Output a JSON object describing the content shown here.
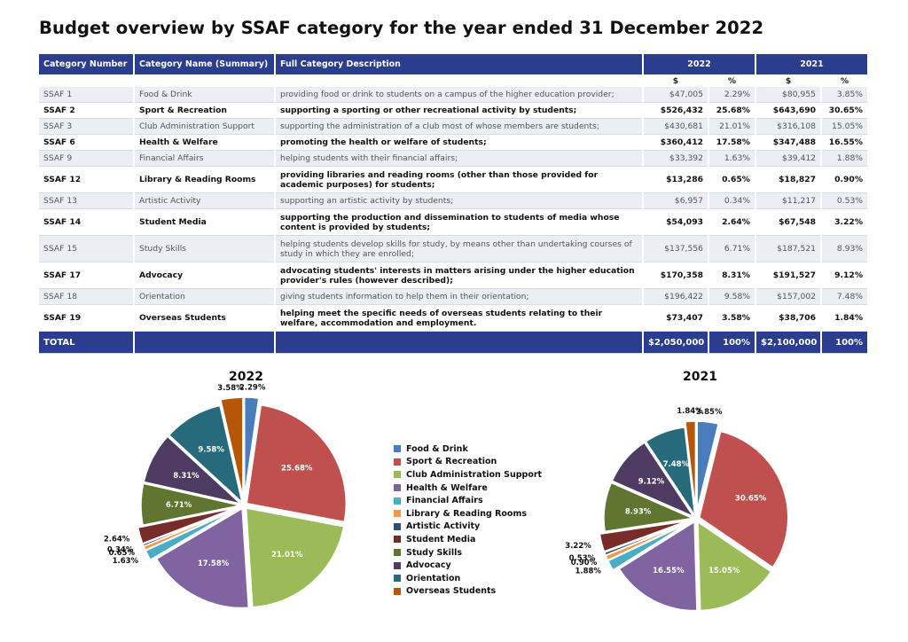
{
  "title": "Budget overview by SSAF category for the year ended 31 December 2022",
  "table": {
    "headers": {
      "number": "Category Number",
      "name": "Category Name (Summary)",
      "desc": "Full Category Description",
      "y2022": "2022",
      "y2021": "2021"
    },
    "units": {
      "dollar": "$",
      "pct": "%"
    },
    "rows": [
      {
        "num": "SSAF 1",
        "name": "Food & Drink",
        "desc": "providing food or drink to students on a campus of the higher education provider;",
        "v2022": "$47,005",
        "p2022": "2.29%",
        "v2021": "$80,955",
        "p2021": "3.85%"
      },
      {
        "num": "SSAF 2",
        "name": "Sport & Recreation",
        "desc": "supporting a sporting or other recreational activity by students;",
        "v2022": "$526,432",
        "p2022": "25.68%",
        "v2021": "$643,690",
        "p2021": "30.65%"
      },
      {
        "num": "SSAF 3",
        "name": "Club Administration Support",
        "desc": "supporting the administration of a club most of whose members are students;",
        "v2022": "$430,681",
        "p2022": "21.01%",
        "v2021": "$316,108",
        "p2021": "15.05%"
      },
      {
        "num": "SSAF 6",
        "name": "Health & Welfare",
        "desc": "promoting the health or welfare of students;",
        "v2022": "$360,412",
        "p2022": "17.58%",
        "v2021": "$347,488",
        "p2021": "16.55%"
      },
      {
        "num": "SSAF 9",
        "name": "Financial Affairs",
        "desc": "helping students with their financial affairs;",
        "v2022": "$33,392",
        "p2022": "1.63%",
        "v2021": "$39,412",
        "p2021": "1.88%"
      },
      {
        "num": "SSAF 12",
        "name": "Library & Reading Rooms",
        "desc": "providing libraries and reading rooms (other than those provided for academic purposes) for students;",
        "v2022": "$13,286",
        "p2022": "0.65%",
        "v2021": "$18,827",
        "p2021": "0.90%"
      },
      {
        "num": "SSAF 13",
        "name": "Artistic Activity",
        "desc": "supporting an artistic activity by students;",
        "v2022": "$6,957",
        "p2022": "0.34%",
        "v2021": "$11,217",
        "p2021": "0.53%"
      },
      {
        "num": "SSAF 14",
        "name": "Student Media",
        "desc": "supporting the production and dissemination to students of media whose content is provided by students;",
        "v2022": "$54,093",
        "p2022": "2.64%",
        "v2021": "$67,548",
        "p2021": "3.22%"
      },
      {
        "num": "SSAF 15",
        "name": "Study Skills",
        "desc": "helping students develop skills for study, by means other than undertaking courses of study in which they are enrolled;",
        "v2022": "$137,556",
        "p2022": "6.71%",
        "v2021": "$187,521",
        "p2021": "8.93%"
      },
      {
        "num": "SSAF 17",
        "name": "Advocacy",
        "desc": "advocating students' interests in matters arising under the higher education provider's rules (however described);",
        "v2022": "$170,358",
        "p2022": "8.31%",
        "v2021": "$191,527",
        "p2021": "9.12%"
      },
      {
        "num": "SSAF 18",
        "name": "Orientation",
        "desc": "giving students information to help them in their orientation;",
        "v2022": "$196,422",
        "p2022": "9.58%",
        "v2021": "$157,002",
        "p2021": "7.48%"
      },
      {
        "num": "SSAF 19",
        "name": "Overseas Students",
        "desc": "helping meet the specific needs of overseas students relating to their welfare, accommodation and employment.",
        "v2022": "$73,407",
        "p2022": "3.58%",
        "v2021": "$38,706",
        "p2021": "1.84%"
      }
    ],
    "total": {
      "label": "TOTAL",
      "v2022": "$2,050,000",
      "p2022": "100%",
      "v2021": "$2,100,000",
      "p2021": "100%"
    }
  },
  "chart_data": [
    {
      "type": "pie",
      "title": "2022",
      "categories": [
        "Food & Drink",
        "Sport & Recreation",
        "Club Administration Support",
        "Health & Welfare",
        "Financial Affairs",
        "Library & Reading Rooms",
        "Artistic Activity",
        "Student Media",
        "Study Skills",
        "Advocacy",
        "Orientation",
        "Overseas Students"
      ],
      "values": [
        2.29,
        25.68,
        21.01,
        17.58,
        1.63,
        0.65,
        0.34,
        2.64,
        6.71,
        8.31,
        9.58,
        3.58
      ],
      "labels": [
        "2.29%",
        "25.68%",
        "21.01%",
        "17.58%",
        "1.63%",
        "0.65%",
        "0.34%",
        "2.64%",
        "6.71%",
        "8.31%",
        "9.58%",
        "3.58%"
      ]
    },
    {
      "type": "pie",
      "title": "2021",
      "categories": [
        "Food & Drink",
        "Sport & Recreation",
        "Club Administration Support",
        "Health & Welfare",
        "Financial Affairs",
        "Library & Reading Rooms",
        "Artistic Activity",
        "Student Media",
        "Study Skills",
        "Advocacy",
        "Orientation",
        "Overseas Students"
      ],
      "values": [
        3.85,
        30.65,
        15.05,
        16.55,
        1.88,
        0.9,
        0.53,
        3.22,
        8.93,
        9.12,
        7.48,
        1.84
      ],
      "labels": [
        "3.85%",
        "30.65%",
        "15.05%",
        "16.55%",
        "1.88%",
        "0.90%",
        "0.53%",
        "3.22%",
        "8.93%",
        "9.12%",
        "7.48%",
        "1.84%"
      ]
    }
  ],
  "legend": [
    "Food & Drink",
    "Sport & Recreation",
    "Club Administration Support",
    "Health & Welfare",
    "Financial Affairs",
    "Library & Reading Rooms",
    "Artistic Activity",
    "Student Media",
    "Study Skills",
    "Advocacy",
    "Orientation",
    "Overseas Students"
  ],
  "colors": [
    "#4a7cc0",
    "#c0504d",
    "#9bbb59",
    "#8064a2",
    "#4bacc6",
    "#f79646",
    "#2c4d75",
    "#772c2a",
    "#5f7530",
    "#4d3b62",
    "#276a7c",
    "#b65708"
  ]
}
